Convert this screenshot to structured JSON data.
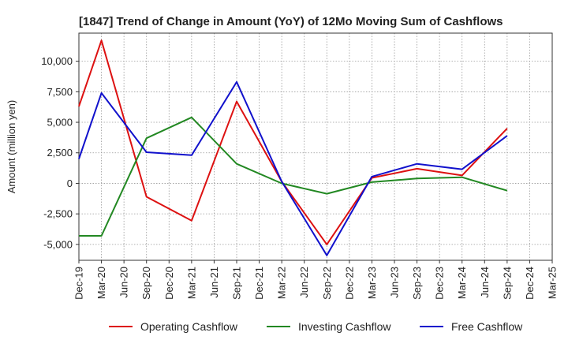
{
  "chart_data": {
    "type": "line",
    "title": "[1847]  Trend of Change in Amount (YoY) of 12Mo Moving Sum of Cashflows",
    "xlabel": "",
    "ylabel": "Amount (million yen)",
    "categories": [
      "Dec-19",
      "Mar-20",
      "Jun-20",
      "Sep-20",
      "Dec-20",
      "Mar-21",
      "Jun-21",
      "Sep-21",
      "Dec-21",
      "Mar-22",
      "Jun-22",
      "Sep-22",
      "Dec-22",
      "Mar-23",
      "Jun-23",
      "Sep-23",
      "Dec-23",
      "Mar-24",
      "Jun-24",
      "Sep-24",
      "Dec-24",
      "Mar-25"
    ],
    "ylim": [
      -6300,
      12300
    ],
    "yticks": [
      -5000,
      -2500,
      0,
      2500,
      5000,
      7500,
      10000
    ],
    "ytick_labels": [
      "-5,000",
      "-2,500",
      "0",
      "2,500",
      "5,000",
      "7,500",
      "10,000"
    ],
    "grid": true,
    "legend_position": "bottom",
    "series": [
      {
        "name": "Operating Cashflow",
        "color": "#dd1111",
        "values": [
          6300,
          11700,
          null,
          -1100,
          null,
          -3050,
          null,
          6700,
          null,
          150,
          null,
          -5000,
          null,
          450,
          null,
          1200,
          null,
          650,
          null,
          4500,
          null,
          null
        ]
      },
      {
        "name": "Investing Cashflow",
        "color": "#228822",
        "values": [
          -4300,
          -4300,
          null,
          3700,
          null,
          5400,
          null,
          1600,
          null,
          0,
          null,
          -850,
          null,
          100,
          null,
          400,
          null,
          500,
          null,
          -600,
          null,
          null
        ]
      },
      {
        "name": "Free Cashflow",
        "color": "#1111cc",
        "values": [
          2000,
          7400,
          null,
          2550,
          null,
          2300,
          null,
          8300,
          null,
          150,
          null,
          -5900,
          null,
          550,
          null,
          1600,
          null,
          1150,
          null,
          3900,
          null,
          null
        ]
      }
    ]
  }
}
